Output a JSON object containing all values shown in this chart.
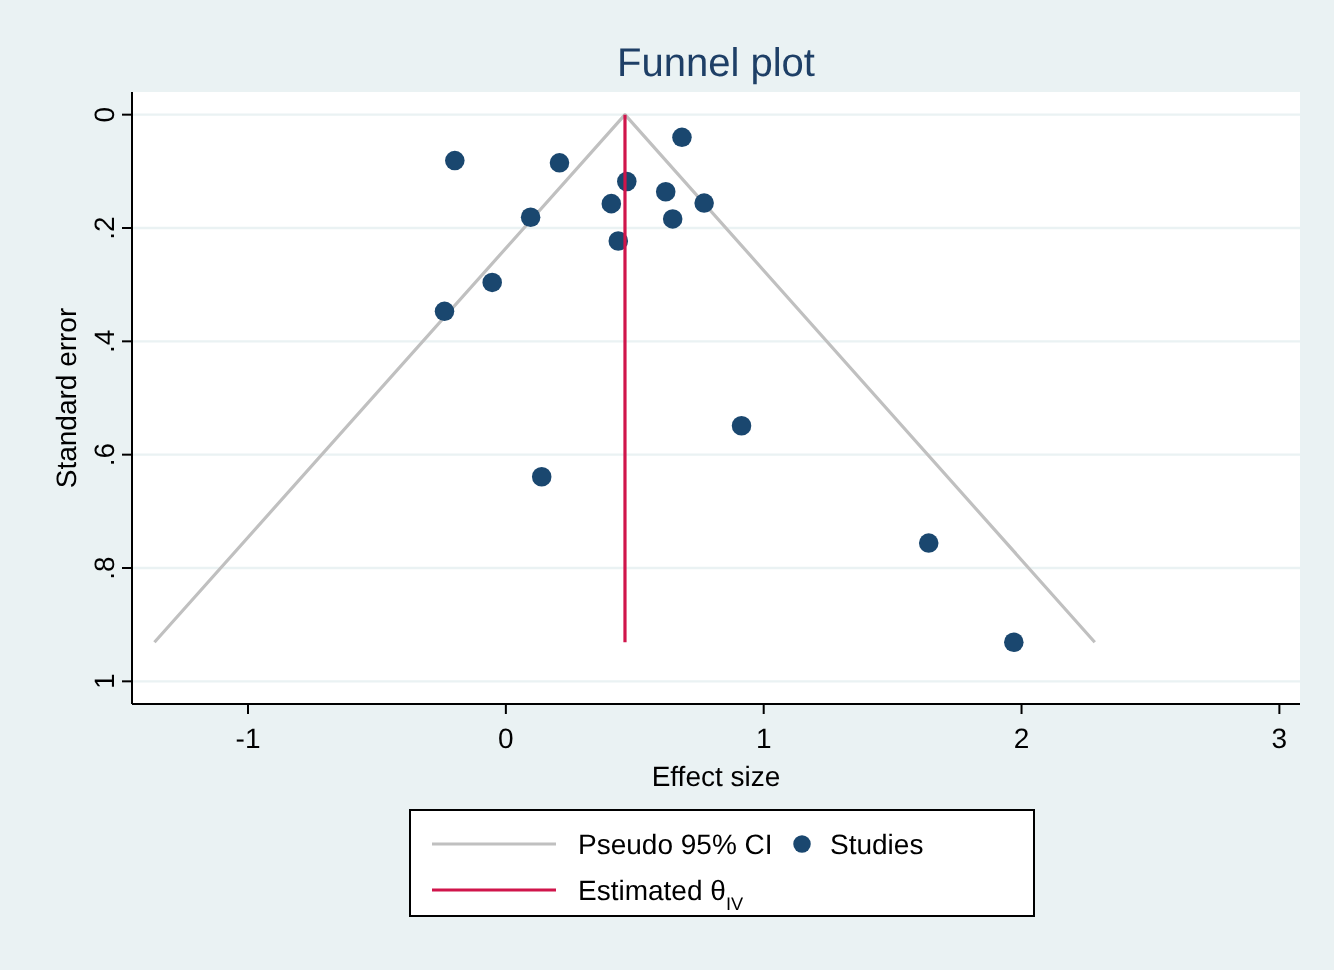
{
  "chart_data": {
    "type": "scatter",
    "title": "Funnel plot",
    "xlabel": "Effect size",
    "ylabel": "Standard error",
    "xlim": [
      -1.45,
      3.08
    ],
    "xticks": [
      -1,
      0,
      1,
      2,
      3
    ],
    "ylim": [
      1.04,
      -0.04
    ],
    "yticks": [
      0,
      {
        "value": 0.2,
        "label": ".2"
      },
      {
        "value": 0.4,
        "label": ".4"
      },
      {
        "value": 0.6,
        "label": ".6"
      },
      {
        "value": 0.8,
        "label": ".8"
      },
      1
    ],
    "grid": "y",
    "legend": "bottom",
    "series": [
      {
        "name": "Pseudo 95% CI",
        "type": "line",
        "color": "#c0c0c0",
        "x": [
          -1.363,
          0.462,
          2.284
        ],
        "values": [
          0.931,
          0,
          0.931
        ]
      },
      {
        "name": "Studies",
        "marker": "circle",
        "color": "#1a476f",
        "x": [
          -0.198,
          0.208,
          0.683,
          0.469,
          0.62,
          0.409,
          0.769,
          0.647,
          0.096,
          0.436,
          -0.053,
          -0.238,
          0.914,
          0.139,
          1.64,
          1.97
        ],
        "values": [
          0.081,
          0.085,
          0.04,
          0.118,
          0.136,
          0.157,
          0.156,
          0.184,
          0.181,
          0.223,
          0.296,
          0.347,
          0.549,
          0.639,
          0.756,
          0.931
        ]
      },
      {
        "name": "Estimated θ$_{IV}$",
        "type": "line",
        "color": "#d0154b",
        "x": [
          0.462,
          0.462
        ],
        "values": [
          0,
          0.931
        ]
      }
    ]
  }
}
